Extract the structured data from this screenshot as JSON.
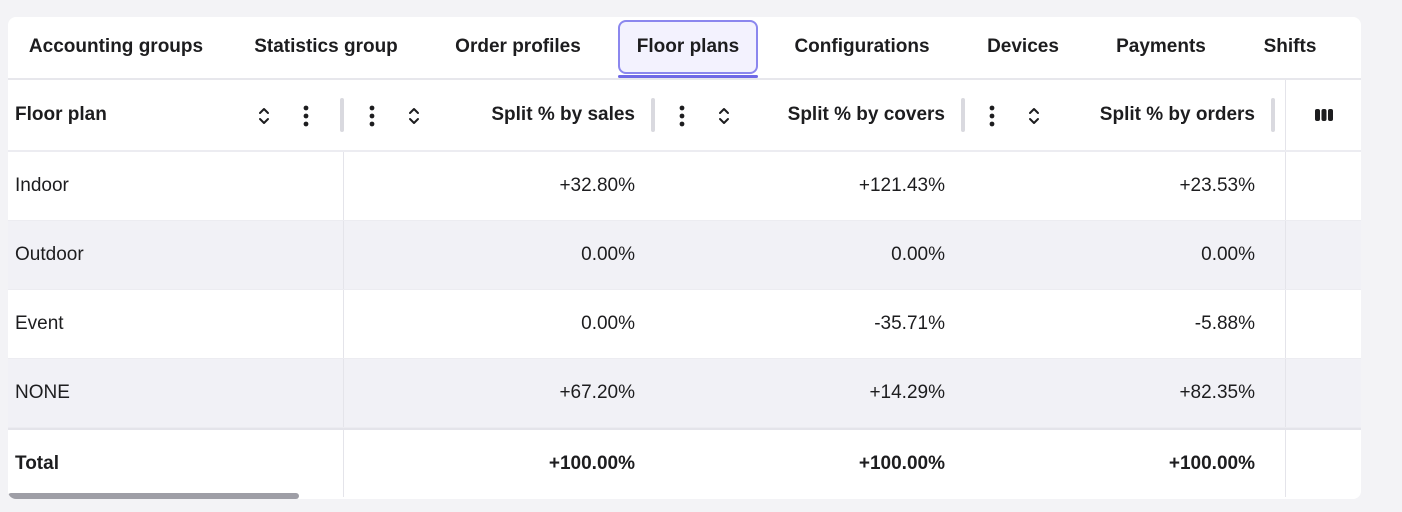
{
  "tabs": [
    {
      "label": "Accounting groups",
      "active": false
    },
    {
      "label": "Statistics group",
      "active": false
    },
    {
      "label": "Order profiles",
      "active": false
    },
    {
      "label": "Floor plans",
      "active": true
    },
    {
      "label": "Configurations",
      "active": false
    },
    {
      "label": "Devices",
      "active": false
    },
    {
      "label": "Payments",
      "active": false
    },
    {
      "label": "Shifts",
      "active": false
    }
  ],
  "table": {
    "headers": [
      "Floor plan",
      "Split % by sales",
      "Split % by covers",
      "Split % by orders"
    ],
    "rows": [
      [
        "Indoor",
        "+32.80%",
        "+121.43%",
        "+23.53%"
      ],
      [
        "Outdoor",
        "0.00%",
        "0.00%",
        "0.00%"
      ],
      [
        "Event",
        "0.00%",
        "-35.71%",
        "-5.88%"
      ],
      [
        "NONE",
        "+67.20%",
        "+14.29%",
        "+82.35%"
      ]
    ],
    "total": [
      "Total",
      "+100.00%",
      "+100.00%",
      "+100.00%"
    ]
  },
  "icons": {
    "sort": "sort-icon",
    "menu": "kebab-menu-icon",
    "columns": "columns-icon"
  },
  "colors": {
    "accent": "#6f69e6",
    "active_tab_bg": "#f3f2fe",
    "alt_row_bg": "#f1f1f6"
  }
}
